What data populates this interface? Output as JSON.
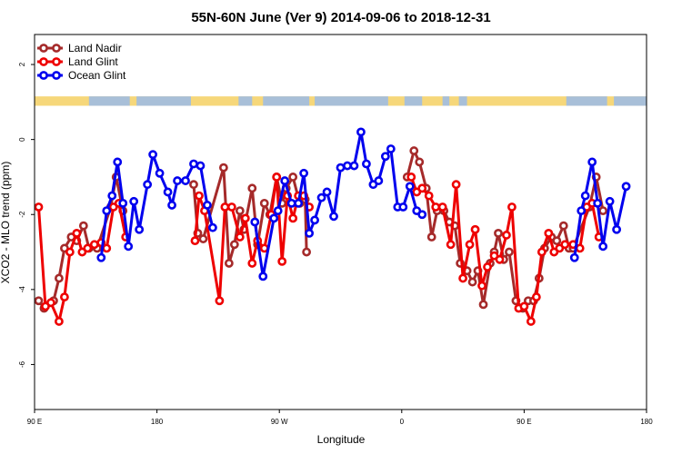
{
  "chart_data": {
    "type": "line",
    "title": "55N-60N June (Ver 9)   2014-09-06 to 2018-12-31",
    "xlabel": "Longitude",
    "ylabel": "XCO2 - MLO trend (ppm)",
    "x_ticks": [
      {
        "value": 90,
        "label": "90 E"
      },
      {
        "value": 180,
        "label": "180"
      },
      {
        "value": 270,
        "label": "90 W"
      },
      {
        "value": 360,
        "label": "0"
      },
      {
        "value": 450,
        "label": "90 E"
      },
      {
        "value": 540,
        "label": "180"
      }
    ],
    "y_ticks": [
      2,
      0,
      -2,
      -4,
      -6
    ],
    "xlim": [
      90,
      540
    ],
    "ylim": [
      -7.2,
      2.8
    ],
    "legend_position": "top-left",
    "land_sea_band": {
      "y_top": 1.15,
      "y_bottom": 0.9,
      "land_color": "#F6D77A",
      "ocean_color": "#A8BFD8"
    },
    "series": [
      {
        "name": "Land Nadir",
        "color": "#A52A2A",
        "points": [
          [
            93,
            -4.3
          ],
          [
            97,
            -4.5
          ],
          [
            104,
            -4.3
          ],
          [
            108,
            -3.7
          ],
          [
            112,
            -2.9
          ],
          [
            117,
            -2.6
          ],
          [
            121,
            -2.7
          ],
          [
            126,
            -2.3
          ],
          [
            130,
            -2.9
          ],
          [
            136,
            -2.9
          ],
          [
            146,
            -1.8
          ],
          [
            150,
            -1.0
          ],
          [
            155,
            -1.9
          ],
          [
            207,
            -1.2
          ],
          [
            210,
            -2.5
          ],
          [
            214,
            -2.65
          ],
          [
            229,
            -0.75
          ],
          [
            233,
            -3.3
          ],
          [
            237,
            -2.8
          ],
          [
            241,
            -1.9
          ],
          [
            244,
            -2.4
          ],
          [
            250,
            -1.3
          ],
          [
            254,
            -2.8
          ],
          [
            259,
            -1.7
          ],
          [
            263,
            -2.0
          ],
          [
            268,
            -1.0
          ],
          [
            272,
            -1.7
          ],
          [
            275,
            -1.3
          ],
          [
            280,
            -1.0
          ],
          [
            285,
            -1.7
          ],
          [
            289,
            -1.6
          ],
          [
            290,
            -3.0
          ],
          [
            364,
            -1.0
          ],
          [
            369,
            -0.3
          ],
          [
            373,
            -0.6
          ],
          [
            378,
            -1.3
          ],
          [
            382,
            -2.6
          ],
          [
            386,
            -1.9
          ],
          [
            391,
            -1.9
          ],
          [
            395,
            -2.2
          ],
          [
            399,
            -2.3
          ],
          [
            403,
            -3.3
          ],
          [
            408,
            -3.5
          ],
          [
            412,
            -3.8
          ],
          [
            416,
            -3.5
          ],
          [
            420,
            -4.4
          ],
          [
            425,
            -3.3
          ],
          [
            428,
            -3.0
          ],
          [
            431,
            -2.5
          ],
          [
            435,
            -3.2
          ],
          [
            439,
            -3.0
          ],
          [
            444,
            -4.3
          ],
          [
            449,
            -4.5
          ],
          [
            453,
            -4.3
          ],
          [
            457,
            -4.3
          ],
          [
            461,
            -3.7
          ],
          [
            465,
            -2.9
          ],
          [
            470,
            -2.6
          ],
          [
            474,
            -2.7
          ],
          [
            479,
            -2.3
          ],
          [
            483,
            -2.9
          ],
          [
            486,
            -2.9
          ],
          [
            498,
            -1.8
          ],
          [
            503,
            -1.0
          ],
          [
            508,
            -1.9
          ]
        ]
      },
      {
        "name": "Land Glint",
        "color": "#EE0000",
        "points": [
          [
            93,
            -1.8
          ],
          [
            98,
            -4.45
          ],
          [
            102,
            -4.35
          ],
          [
            108,
            -4.85
          ],
          [
            112,
            -4.2
          ],
          [
            116,
            -3.0
          ],
          [
            121,
            -2.5
          ],
          [
            125,
            -3.0
          ],
          [
            129,
            -2.9
          ],
          [
            134,
            -2.8
          ],
          [
            139,
            -2.75
          ],
          [
            143,
            -2.9
          ],
          [
            148,
            -1.8
          ],
          [
            152,
            -1.7
          ],
          [
            157,
            -2.6
          ],
          [
            208,
            -2.7
          ],
          [
            211,
            -1.5
          ],
          [
            215,
            -1.9
          ],
          [
            226,
            -4.3
          ],
          [
            230,
            -1.8
          ],
          [
            235,
            -1.8
          ],
          [
            241,
            -2.6
          ],
          [
            245,
            -2.1
          ],
          [
            250,
            -3.3
          ],
          [
            254,
            -2.7
          ],
          [
            259,
            -2.9
          ],
          [
            264,
            -2.0
          ],
          [
            268,
            -1.0
          ],
          [
            272,
            -3.25
          ],
          [
            276,
            -1.5
          ],
          [
            280,
            -2.1
          ],
          [
            284,
            -1.5
          ],
          [
            288,
            -1.5
          ],
          [
            292,
            -1.8
          ],
          [
            367,
            -1.0
          ],
          [
            371,
            -1.4
          ],
          [
            375,
            -1.3
          ],
          [
            380,
            -1.5
          ],
          [
            385,
            -1.8
          ],
          [
            390,
            -1.8
          ],
          [
            396,
            -2.8
          ],
          [
            400,
            -1.2
          ],
          [
            405,
            -3.7
          ],
          [
            410,
            -2.8
          ],
          [
            414,
            -2.4
          ],
          [
            419,
            -3.9
          ],
          [
            423,
            -3.4
          ],
          [
            428,
            -3.1
          ],
          [
            432,
            -3.2
          ],
          [
            437,
            -2.55
          ],
          [
            441,
            -1.8
          ],
          [
            446,
            -4.5
          ],
          [
            450,
            -4.45
          ],
          [
            455,
            -4.85
          ],
          [
            459,
            -4.2
          ],
          [
            463,
            -3.0
          ],
          [
            468,
            -2.5
          ],
          [
            472,
            -3.0
          ],
          [
            476,
            -2.9
          ],
          [
            480,
            -2.8
          ],
          [
            486,
            -2.8
          ],
          [
            491,
            -2.9
          ],
          [
            496,
            -1.8
          ],
          [
            500,
            -1.7
          ],
          [
            505,
            -2.6
          ]
        ]
      },
      {
        "name": "Ocean Glint",
        "color": "#0000EE",
        "points": [
          [
            139,
            -3.15
          ],
          [
            143,
            -1.9
          ],
          [
            147,
            -1.5
          ],
          [
            151,
            -0.6
          ],
          [
            155,
            -1.7
          ],
          [
            159,
            -2.85
          ],
          [
            163,
            -1.65
          ],
          [
            167,
            -2.4
          ],
          [
            173,
            -1.2
          ],
          [
            177,
            -0.4
          ],
          [
            182,
            -0.9
          ],
          [
            188,
            -1.4
          ],
          [
            191,
            -1.75
          ],
          [
            195,
            -1.1
          ],
          [
            201,
            -1.1
          ],
          [
            207,
            -0.65
          ],
          [
            212,
            -0.7
          ],
          [
            217,
            -1.75
          ],
          [
            221,
            -2.35
          ],
          [
            252,
            -2.2
          ],
          [
            258,
            -3.65
          ],
          [
            266,
            -2.1
          ],
          [
            269,
            -1.9
          ],
          [
            274,
            -1.1
          ],
          [
            279,
            -1.7
          ],
          [
            284,
            -1.7
          ],
          [
            288,
            -0.9
          ],
          [
            292,
            -2.5
          ],
          [
            296,
            -2.15
          ],
          [
            301,
            -1.55
          ],
          [
            305,
            -1.4
          ],
          [
            310,
            -2.05
          ],
          [
            315,
            -0.75
          ],
          [
            320,
            -0.7
          ],
          [
            325,
            -0.7
          ],
          [
            330,
            0.2
          ],
          [
            334,
            -0.65
          ],
          [
            339,
            -1.2
          ],
          [
            343,
            -1.1
          ],
          [
            348,
            -0.45
          ],
          [
            352,
            -0.25
          ],
          [
            357,
            -1.8
          ],
          [
            361,
            -1.8
          ],
          [
            366,
            -1.25
          ],
          [
            371,
            -1.9
          ],
          [
            375,
            -2.0
          ],
          [
            487,
            -3.15
          ],
          [
            492,
            -1.9
          ],
          [
            495,
            -1.5
          ],
          [
            500,
            -0.6
          ],
          [
            504,
            -1.7
          ],
          [
            508,
            -2.85
          ],
          [
            513,
            -1.65
          ],
          [
            518,
            -2.4
          ],
          [
            525,
            -1.25
          ]
        ]
      }
    ]
  }
}
